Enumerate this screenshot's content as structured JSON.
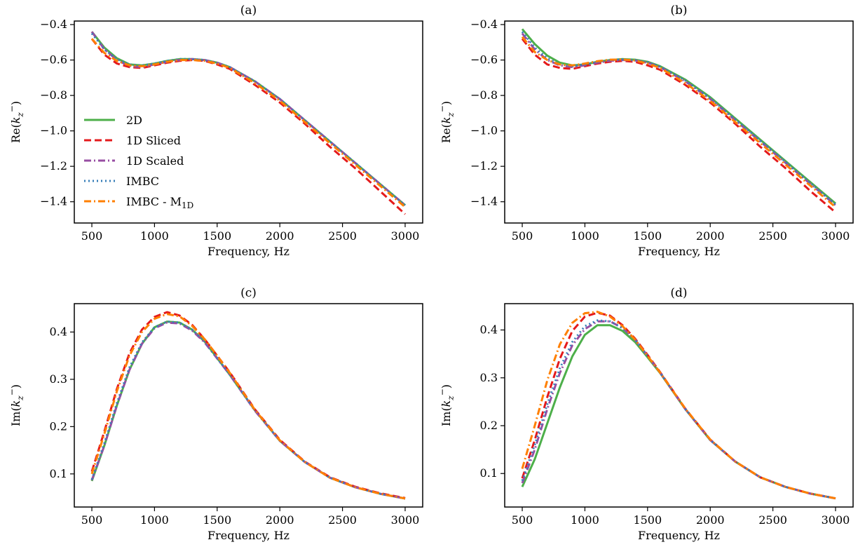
{
  "legend": {
    "location": "center-left of panel (a)",
    "entries": [
      {
        "series": "2D",
        "label": "2D"
      },
      {
        "series": "1D Sliced",
        "label": "1D Sliced"
      },
      {
        "series": "1D Scaled",
        "label": "1D Scaled"
      },
      {
        "series": "IMBC",
        "label": "IMBC"
      },
      {
        "series": "IMBC - M1D",
        "label_main": "IMBC - M",
        "label_sub": "1D"
      }
    ]
  },
  "series_style": {
    "2D": {
      "color": "#4daf4a",
      "dash": "solid"
    },
    "1D Sliced": {
      "color": "#e41a1c",
      "dash": "dashed"
    },
    "1D Scaled": {
      "color": "#984ea3",
      "dash": "dashdot"
    },
    "IMBC": {
      "color": "#377eb8",
      "dash": "dotted"
    },
    "IMBC - M1D": {
      "color": "#ff7f00",
      "dash": "dashdot"
    }
  },
  "chart_data": [
    {
      "panel": "a",
      "type": "line",
      "title": "(a)",
      "xlabel": "Frequency, Hz",
      "ylabel_main": "Re(",
      "ylabel_sym": "k",
      "ylabel_sub": "z",
      "ylabel_sup": "−",
      "ylabel_end": ")",
      "xlim": [
        360,
        3140
      ],
      "ylim": [
        -1.52,
        -0.38
      ],
      "xticks": [
        500,
        1000,
        1500,
        2000,
        2500,
        3000
      ],
      "xtick_labels": [
        "500",
        "1000",
        "1500",
        "2000",
        "2500",
        "3000"
      ],
      "yticks": [
        -1.4,
        -1.2,
        -1.0,
        -0.8,
        -0.6,
        -0.4
      ],
      "ytick_labels": [
        "−1.4",
        "−1.2",
        "−1.0",
        "−0.8",
        "−0.6",
        "−0.4"
      ],
      "grid": false,
      "x": [
        500,
        600,
        700,
        800,
        900,
        1000,
        1100,
        1200,
        1300,
        1400,
        1500,
        1600,
        1800,
        2000,
        2200,
        2400,
        2600,
        2800,
        3000
      ],
      "series": [
        {
          "name": "2D",
          "values": [
            -0.44,
            -0.53,
            -0.59,
            -0.625,
            -0.63,
            -0.62,
            -0.605,
            -0.595,
            -0.595,
            -0.6,
            -0.615,
            -0.64,
            -0.72,
            -0.82,
            -0.94,
            -1.06,
            -1.18,
            -1.3,
            -1.42
          ]
        },
        {
          "name": "1D Sliced",
          "values": [
            -0.48,
            -0.57,
            -0.62,
            -0.64,
            -0.645,
            -0.63,
            -0.615,
            -0.605,
            -0.6,
            -0.605,
            -0.625,
            -0.65,
            -0.74,
            -0.84,
            -0.96,
            -1.09,
            -1.21,
            -1.34,
            -1.47
          ]
        },
        {
          "name": "1D Scaled",
          "values": [
            -0.44,
            -0.54,
            -0.6,
            -0.635,
            -0.64,
            -0.625,
            -0.61,
            -0.6,
            -0.595,
            -0.6,
            -0.615,
            -0.64,
            -0.72,
            -0.82,
            -0.94,
            -1.06,
            -1.18,
            -1.3,
            -1.42
          ]
        },
        {
          "name": "IMBC",
          "values": [
            -0.45,
            -0.54,
            -0.595,
            -0.625,
            -0.63,
            -0.62,
            -0.605,
            -0.595,
            -0.595,
            -0.6,
            -0.615,
            -0.64,
            -0.72,
            -0.82,
            -0.94,
            -1.06,
            -1.18,
            -1.3,
            -1.42
          ]
        },
        {
          "name": "IMBC - M1D",
          "values": [
            -0.48,
            -0.56,
            -0.605,
            -0.63,
            -0.635,
            -0.625,
            -0.61,
            -0.6,
            -0.6,
            -0.605,
            -0.62,
            -0.645,
            -0.73,
            -0.83,
            -0.95,
            -1.07,
            -1.19,
            -1.31,
            -1.43
          ]
        }
      ]
    },
    {
      "panel": "b",
      "type": "line",
      "title": "(b)",
      "xlabel": "Frequency, Hz",
      "ylabel_main": "Re(",
      "ylabel_sym": "k",
      "ylabel_sub": "z",
      "ylabel_sup": "−",
      "ylabel_end": ")",
      "xlim": [
        360,
        3140
      ],
      "ylim": [
        -1.52,
        -0.38
      ],
      "xticks": [
        500,
        1000,
        1500,
        2000,
        2500,
        3000
      ],
      "xtick_labels": [
        "500",
        "1000",
        "1500",
        "2000",
        "2500",
        "3000"
      ],
      "yticks": [
        -1.4,
        -1.2,
        -1.0,
        -0.8,
        -0.6,
        -0.4
      ],
      "ytick_labels": [
        "−1.4",
        "−1.2",
        "−1.0",
        "−0.8",
        "−0.6",
        "−0.4"
      ],
      "grid": false,
      "x": [
        500,
        600,
        700,
        800,
        900,
        1000,
        1100,
        1200,
        1300,
        1400,
        1500,
        1600,
        1800,
        2000,
        2200,
        2400,
        2600,
        2800,
        3000
      ],
      "series": [
        {
          "name": "2D",
          "values": [
            -0.425,
            -0.51,
            -0.575,
            -0.615,
            -0.63,
            -0.625,
            -0.61,
            -0.6,
            -0.595,
            -0.598,
            -0.61,
            -0.635,
            -0.71,
            -0.81,
            -0.93,
            -1.05,
            -1.17,
            -1.29,
            -1.41
          ]
        },
        {
          "name": "1D Sliced",
          "values": [
            -0.48,
            -0.57,
            -0.625,
            -0.645,
            -0.65,
            -0.635,
            -0.62,
            -0.61,
            -0.605,
            -0.61,
            -0.63,
            -0.655,
            -0.74,
            -0.84,
            -0.96,
            -1.09,
            -1.21,
            -1.34,
            -1.46
          ]
        },
        {
          "name": "1D Scaled",
          "values": [
            -0.45,
            -0.54,
            -0.6,
            -0.63,
            -0.64,
            -0.63,
            -0.615,
            -0.605,
            -0.6,
            -0.603,
            -0.615,
            -0.64,
            -0.72,
            -0.82,
            -0.94,
            -1.06,
            -1.18,
            -1.3,
            -1.42
          ]
        },
        {
          "name": "IMBC",
          "values": [
            -0.44,
            -0.53,
            -0.59,
            -0.625,
            -0.635,
            -0.625,
            -0.61,
            -0.6,
            -0.597,
            -0.6,
            -0.612,
            -0.637,
            -0.715,
            -0.815,
            -0.935,
            -1.055,
            -1.175,
            -1.295,
            -1.415
          ]
        },
        {
          "name": "IMBC - M1D",
          "values": [
            -0.47,
            -0.555,
            -0.6,
            -0.625,
            -0.63,
            -0.62,
            -0.607,
            -0.598,
            -0.597,
            -0.603,
            -0.62,
            -0.645,
            -0.73,
            -0.83,
            -0.95,
            -1.07,
            -1.19,
            -1.31,
            -1.43
          ]
        }
      ]
    },
    {
      "panel": "c",
      "type": "line",
      "title": "(c)",
      "xlabel": "Frequency, Hz",
      "ylabel_main": "Im(",
      "ylabel_sym": "k",
      "ylabel_sub": "z",
      "ylabel_sup": "−",
      "ylabel_end": ")",
      "xlim": [
        360,
        3140
      ],
      "ylim": [
        0.03,
        0.46
      ],
      "xticks": [
        500,
        1000,
        1500,
        2000,
        2500,
        3000
      ],
      "xtick_labels": [
        "500",
        "1000",
        "1500",
        "2000",
        "2500",
        "3000"
      ],
      "yticks": [
        0.1,
        0.2,
        0.3,
        0.4
      ],
      "ytick_labels": [
        "0.1",
        "0.2",
        "0.3",
        "0.4"
      ],
      "grid": false,
      "x": [
        500,
        600,
        700,
        800,
        900,
        1000,
        1100,
        1200,
        1300,
        1400,
        1500,
        1600,
        1800,
        2000,
        2200,
        2400,
        2600,
        2800,
        3000
      ],
      "series": [
        {
          "name": "2D",
          "values": [
            0.085,
            0.16,
            0.245,
            0.32,
            0.375,
            0.41,
            0.422,
            0.42,
            0.405,
            0.38,
            0.345,
            0.31,
            0.235,
            0.17,
            0.125,
            0.092,
            0.072,
            0.058,
            0.048
          ]
        },
        {
          "name": "1D Sliced",
          "values": [
            0.105,
            0.19,
            0.28,
            0.355,
            0.405,
            0.432,
            0.442,
            0.435,
            0.415,
            0.385,
            0.35,
            0.315,
            0.237,
            0.172,
            0.126,
            0.093,
            0.073,
            0.059,
            0.049
          ]
        },
        {
          "name": "1D Scaled",
          "values": [
            0.087,
            0.16,
            0.245,
            0.32,
            0.375,
            0.408,
            0.42,
            0.418,
            0.403,
            0.378,
            0.344,
            0.31,
            0.234,
            0.17,
            0.125,
            0.092,
            0.072,
            0.058,
            0.048
          ]
        },
        {
          "name": "IMBC",
          "values": [
            0.088,
            0.165,
            0.25,
            0.325,
            0.378,
            0.41,
            0.422,
            0.42,
            0.405,
            0.38,
            0.345,
            0.31,
            0.235,
            0.17,
            0.125,
            0.092,
            0.072,
            0.058,
            0.048
          ]
        },
        {
          "name": "IMBC - M1D",
          "values": [
            0.1,
            0.185,
            0.275,
            0.35,
            0.4,
            0.428,
            0.438,
            0.433,
            0.413,
            0.385,
            0.35,
            0.314,
            0.236,
            0.171,
            0.125,
            0.092,
            0.072,
            0.058,
            0.048
          ]
        }
      ]
    },
    {
      "panel": "d",
      "type": "line",
      "title": "(d)",
      "xlabel": "Frequency, Hz",
      "ylabel_main": "Im(",
      "ylabel_sym": "k",
      "ylabel_sub": "z",
      "ylabel_sup": "−",
      "ylabel_end": ")",
      "xlim": [
        360,
        3140
      ],
      "ylim": [
        0.03,
        0.455
      ],
      "xticks": [
        500,
        1000,
        1500,
        2000,
        2500,
        3000
      ],
      "xtick_labels": [
        "500",
        "1000",
        "1500",
        "2000",
        "2500",
        "3000"
      ],
      "yticks": [
        0.1,
        0.2,
        0.3,
        0.4
      ],
      "ytick_labels": [
        "0.1",
        "0.2",
        "0.3",
        "0.4"
      ],
      "grid": false,
      "x": [
        500,
        600,
        700,
        800,
        900,
        1000,
        1100,
        1200,
        1300,
        1400,
        1500,
        1600,
        1800,
        2000,
        2200,
        2400,
        2600,
        2800,
        3000
      ],
      "series": [
        {
          "name": "2D",
          "values": [
            0.072,
            0.13,
            0.205,
            0.28,
            0.345,
            0.39,
            0.41,
            0.41,
            0.398,
            0.375,
            0.343,
            0.31,
            0.235,
            0.17,
            0.125,
            0.092,
            0.072,
            0.058,
            0.048
          ]
        },
        {
          "name": "1D Sliced",
          "values": [
            0.09,
            0.17,
            0.26,
            0.34,
            0.398,
            0.428,
            0.436,
            0.43,
            0.41,
            0.382,
            0.348,
            0.312,
            0.236,
            0.171,
            0.125,
            0.092,
            0.072,
            0.058,
            0.048
          ]
        },
        {
          "name": "1D Scaled",
          "values": [
            0.08,
            0.15,
            0.235,
            0.31,
            0.368,
            0.402,
            0.418,
            0.418,
            0.404,
            0.38,
            0.346,
            0.311,
            0.235,
            0.17,
            0.125,
            0.092,
            0.072,
            0.058,
            0.048
          ]
        },
        {
          "name": "IMBC",
          "values": [
            0.085,
            0.16,
            0.245,
            0.32,
            0.375,
            0.408,
            0.42,
            0.418,
            0.404,
            0.38,
            0.346,
            0.311,
            0.235,
            0.17,
            0.125,
            0.092,
            0.072,
            0.058,
            0.048
          ]
        },
        {
          "name": "IMBC - M1D",
          "values": [
            0.11,
            0.2,
            0.295,
            0.37,
            0.415,
            0.435,
            0.438,
            0.428,
            0.408,
            0.38,
            0.346,
            0.311,
            0.236,
            0.171,
            0.125,
            0.092,
            0.072,
            0.058,
            0.048
          ]
        }
      ]
    }
  ]
}
